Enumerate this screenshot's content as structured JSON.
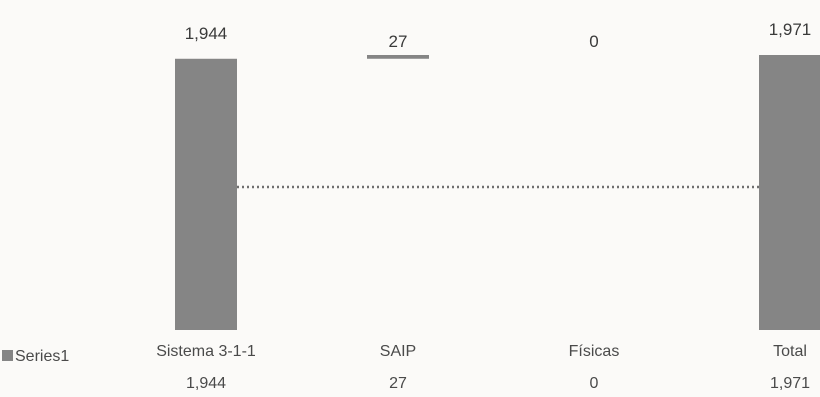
{
  "chart_data": {
    "type": "bar",
    "subtype": "waterfall",
    "categories": [
      "Sistema 3-1-1",
      "SAIP",
      "Físicas",
      "Total"
    ],
    "series": [
      {
        "name": "Series1",
        "values": [
          1944,
          27,
          0,
          1971
        ]
      }
    ],
    "data_labels": [
      "1,944",
      "27",
      "0",
      "1,971"
    ],
    "table_values": [
      "1,944",
      "27",
      "0",
      "1,971"
    ],
    "ylim": [
      0,
      1971
    ],
    "grid": false,
    "legend": "bottom-left",
    "data_table": true,
    "connector_line": "dotted",
    "bar_color": "#858585"
  }
}
